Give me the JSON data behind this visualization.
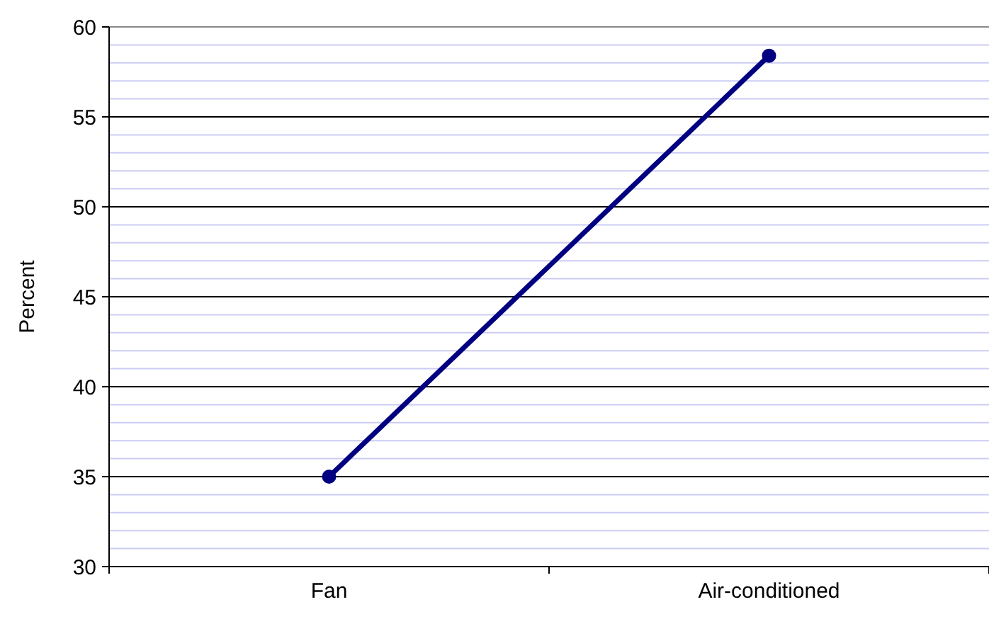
{
  "chart_data": {
    "type": "line",
    "ylabel": "Percent",
    "categories": [
      "Fan",
      "Air-conditioned"
    ],
    "series": [
      {
        "color": "#000080",
        "values": [
          35,
          58.4
        ]
      }
    ],
    "ylim": [
      30,
      60
    ],
    "yticks": [
      30,
      {
        "value": 31,
        "label": null
      },
      {
        "value": 32,
        "label": null
      },
      {
        "value": 33,
        "label": null
      },
      {
        "value": 34,
        "label": null
      },
      35,
      {
        "value": 36,
        "label": null
      },
      {
        "value": 37,
        "label": null
      },
      {
        "value": 38,
        "label": null
      },
      {
        "value": 39,
        "label": null
      },
      40,
      {
        "value": 41,
        "label": null
      },
      {
        "value": 42,
        "label": null
      },
      {
        "value": 43,
        "label": null
      },
      {
        "value": 44,
        "label": null
      },
      45,
      {
        "value": 46,
        "label": null
      },
      {
        "value": 47,
        "label": null
      },
      {
        "value": 48,
        "label": null
      },
      {
        "value": 49,
        "label": null
      },
      50,
      {
        "value": 51,
        "label": null
      },
      {
        "value": 52,
        "label": null
      },
      {
        "value": 53,
        "label": null
      },
      {
        "value": 54,
        "label": null
      },
      55,
      {
        "value": 56,
        "label": null
      },
      {
        "value": 57,
        "label": null
      },
      {
        "value": 58,
        "label": null
      },
      {
        "value": 59,
        "label": null
      },
      60
    ],
    "grid": "y",
    "marker": "circle",
    "line_style": "solid"
  }
}
